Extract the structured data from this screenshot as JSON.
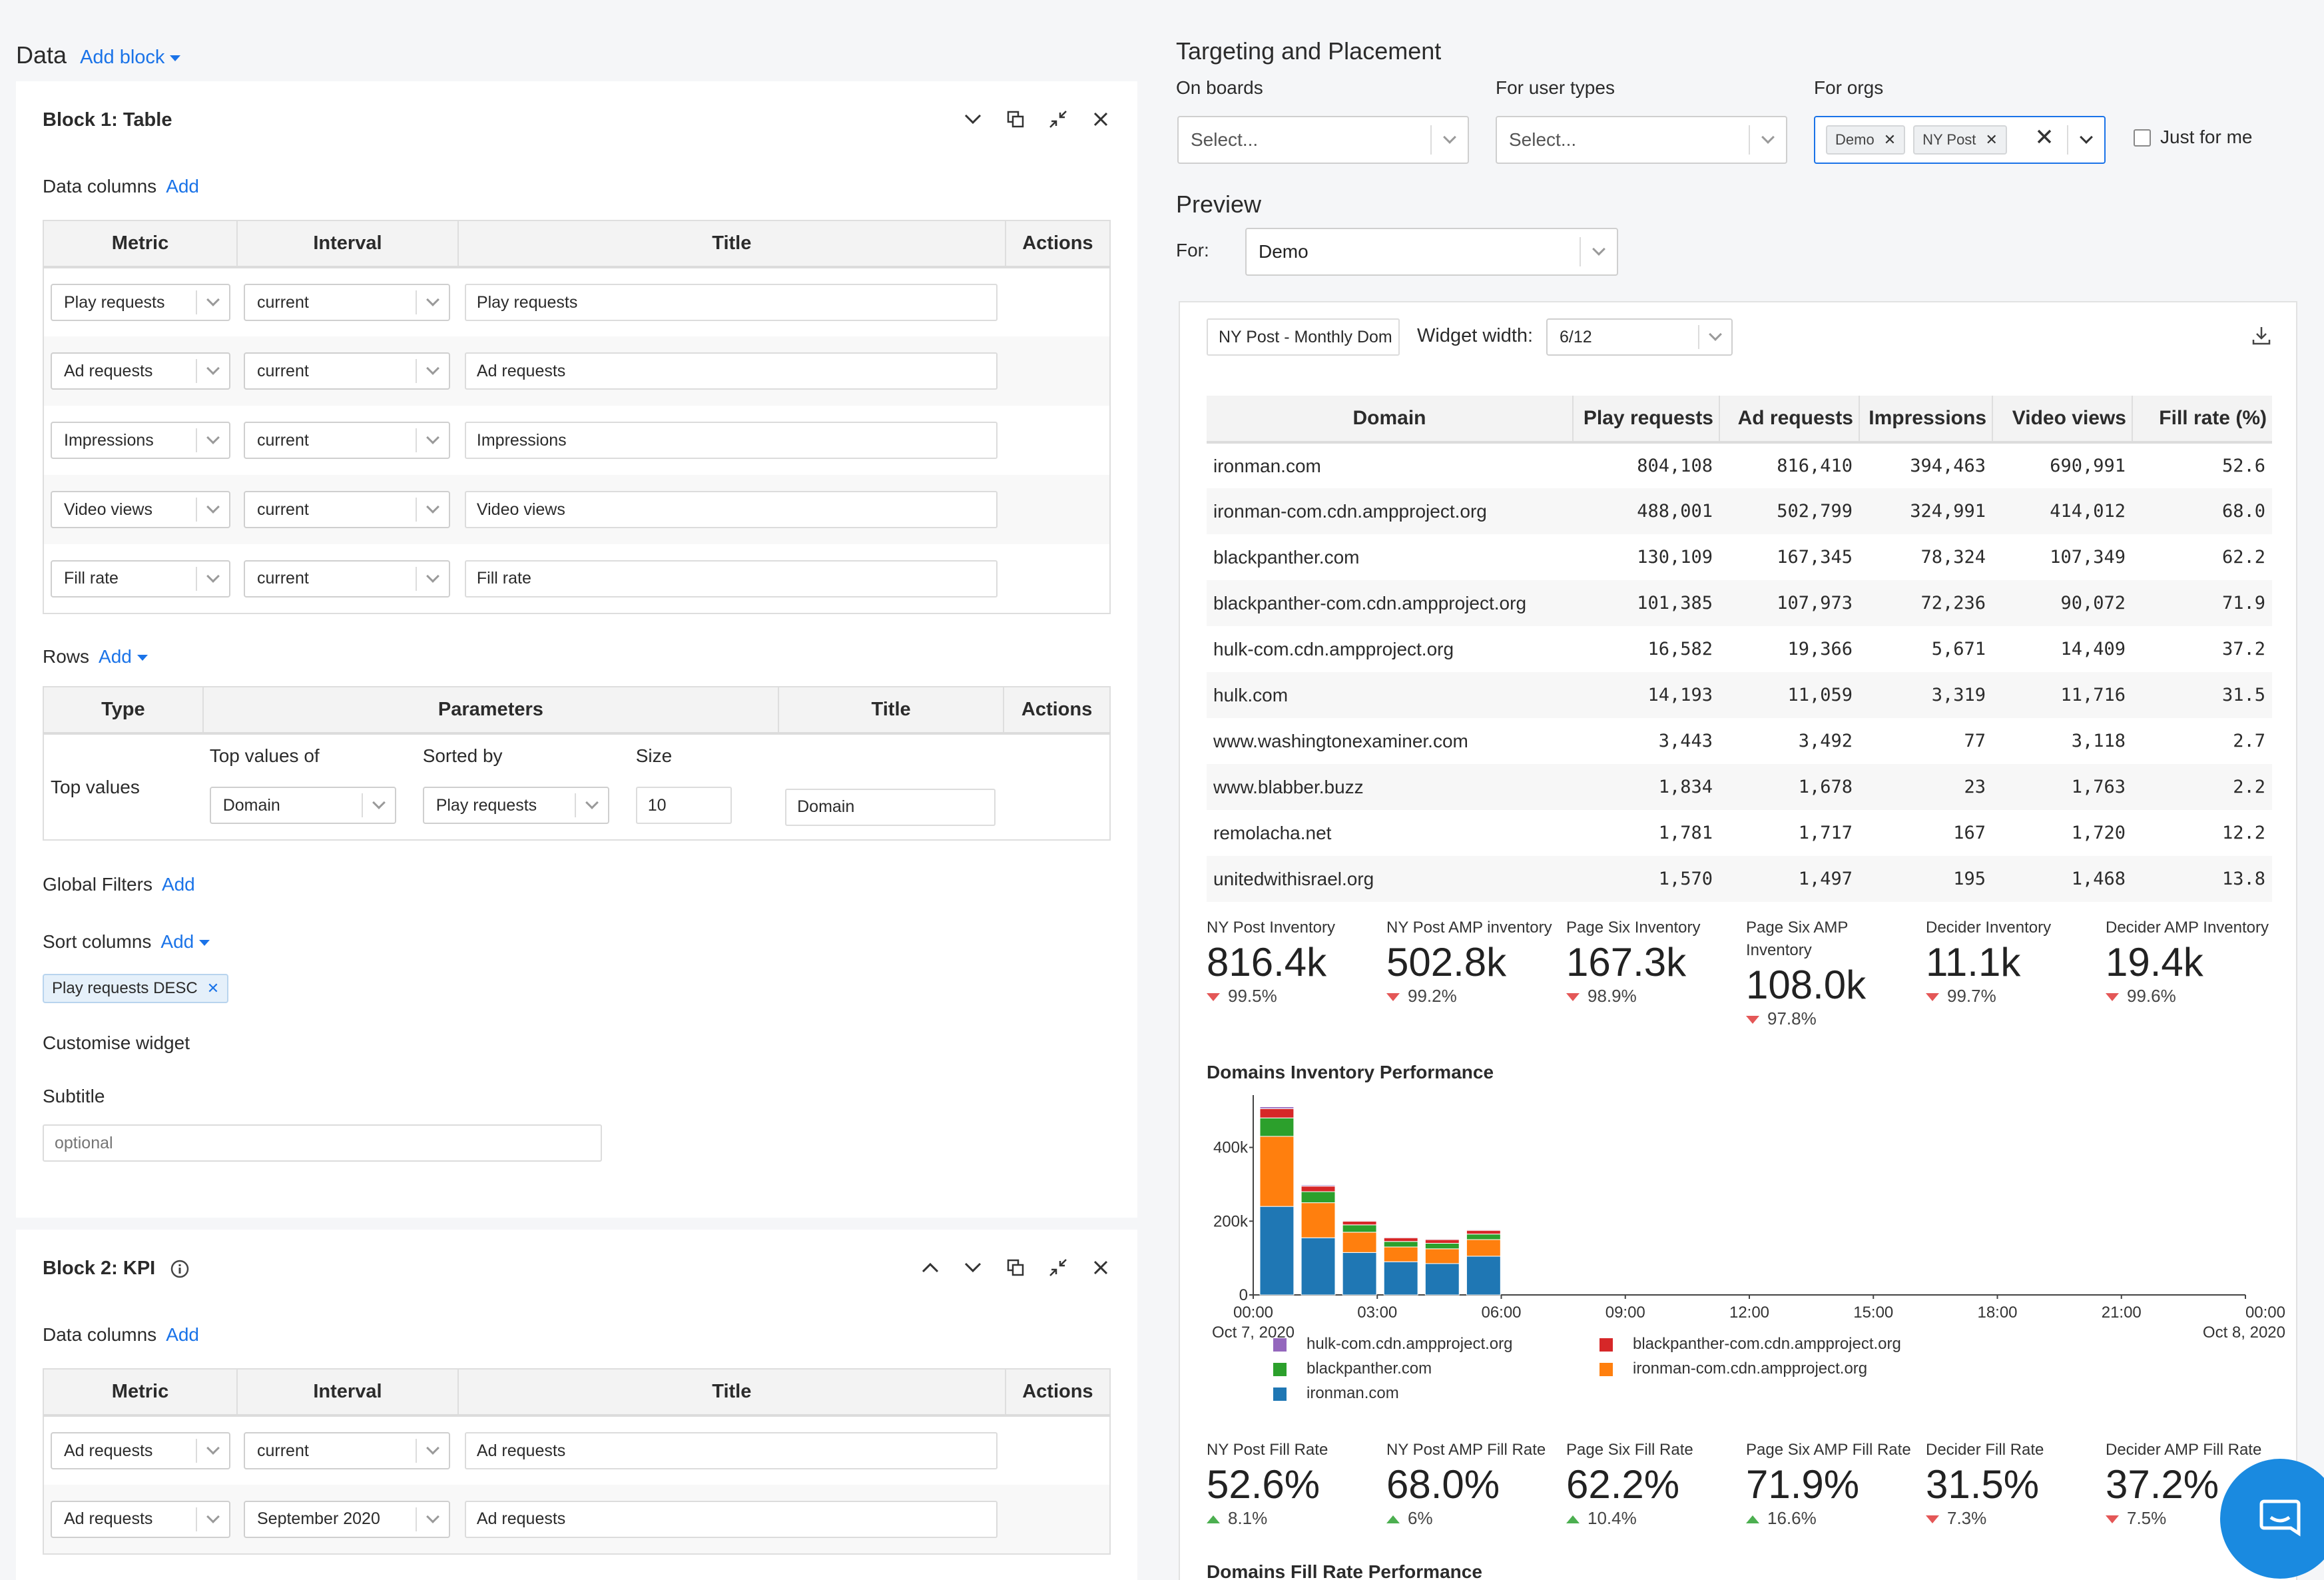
{
  "data_section": {
    "title": "Data",
    "add_block": "Add block"
  },
  "block1": {
    "title": "Block 1: Table",
    "data_columns_label": "Data columns",
    "add": "Add",
    "headers": [
      "Metric",
      "Interval",
      "Title",
      "Actions"
    ],
    "rows": [
      {
        "metric": "Play requests",
        "interval": "current",
        "title": "Play requests"
      },
      {
        "metric": "Ad requests",
        "interval": "current",
        "title": "Ad requests"
      },
      {
        "metric": "Impressions",
        "interval": "current",
        "title": "Impressions"
      },
      {
        "metric": "Video views",
        "interval": "current",
        "title": "Video views"
      },
      {
        "metric": "Fill rate",
        "interval": "current",
        "title": "Fill rate"
      }
    ],
    "rows_label": "Rows",
    "rows_headers": [
      "Type",
      "Parameters",
      "Title",
      "Actions"
    ],
    "row_item": {
      "type": "Top values",
      "top_values_of_label": "Top values of",
      "sorted_by_label": "Sorted by",
      "size_label": "Size",
      "top_values_of": "Domain",
      "sorted_by": "Play requests",
      "size": "10",
      "title": "Domain"
    },
    "global_filters": "Global Filters",
    "sort_columns": "Sort columns",
    "sort_tag": "Play requests DESC",
    "customise": "Customise widget",
    "subtitle_label": "Subtitle",
    "subtitle_placeholder": "optional"
  },
  "block2": {
    "title": "Block 2: KPI",
    "data_columns_label": "Data columns",
    "add": "Add",
    "headers": [
      "Metric",
      "Interval",
      "Title",
      "Actions"
    ],
    "rows": [
      {
        "metric": "Ad requests",
        "interval": "current",
        "title": "Ad requests"
      },
      {
        "metric": "Ad requests",
        "interval": "September 2020",
        "title": "Ad requests"
      }
    ]
  },
  "targeting": {
    "title": "Targeting and Placement",
    "on_boards": "On boards",
    "on_boards_placeholder": "Select...",
    "user_types": "For user types",
    "user_types_placeholder": "Select...",
    "orgs": "For orgs",
    "org_tags": [
      "Demo",
      "NY Post"
    ],
    "just_for_me": "Just for me"
  },
  "preview": {
    "title": "Preview",
    "for_label": "For:",
    "for_value": "Demo",
    "widget_name": "NY Post - Monthly Dom",
    "widget_width_label": "Widget width:",
    "widget_width": "6/12"
  },
  "domain_table": {
    "headers": [
      "Domain",
      "Play requests",
      "Ad requests",
      "Impressions",
      "Video views",
      "Fill rate (%)"
    ],
    "rows": [
      [
        "ironman.com",
        "804,108",
        "816,410",
        "394,463",
        "690,991",
        "52.6"
      ],
      [
        "ironman-com.cdn.ampproject.org",
        "488,001",
        "502,799",
        "324,991",
        "414,012",
        "68.0"
      ],
      [
        "blackpanther.com",
        "130,109",
        "167,345",
        "78,324",
        "107,349",
        "62.2"
      ],
      [
        "blackpanther-com.cdn.ampproject.org",
        "101,385",
        "107,973",
        "72,236",
        "90,072",
        "71.9"
      ],
      [
        "hulk-com.cdn.ampproject.org",
        "16,582",
        "19,366",
        "5,671",
        "14,409",
        "37.2"
      ],
      [
        "hulk.com",
        "14,193",
        "11,059",
        "3,319",
        "11,716",
        "31.5"
      ],
      [
        "www.washingtonexaminer.com",
        "3,443",
        "3,492",
        "77",
        "3,118",
        "2.7"
      ],
      [
        "www.blabber.buzz",
        "1,834",
        "1,678",
        "23",
        "1,763",
        "2.2"
      ],
      [
        "remolacha.net",
        "1,781",
        "1,717",
        "167",
        "1,720",
        "12.2"
      ],
      [
        "unitedwithisrael.org",
        "1,570",
        "1,497",
        "195",
        "1,468",
        "13.8"
      ]
    ]
  },
  "inventory_kpis": [
    {
      "label": "NY Post Inventory",
      "value": "816.4k",
      "delta": "99.5%",
      "dir": "down"
    },
    {
      "label": "NY Post AMP inventory",
      "value": "502.8k",
      "delta": "99.2%",
      "dir": "down"
    },
    {
      "label": "Page Six Inventory",
      "value": "167.3k",
      "delta": "98.9%",
      "dir": "down"
    },
    {
      "label": "Page Six AMP Inventory",
      "value": "108.0k",
      "delta": "97.8%",
      "dir": "down"
    },
    {
      "label": "Decider Inventory",
      "value": "11.1k",
      "delta": "99.7%",
      "dir": "down"
    },
    {
      "label": "Decider AMP Inventory",
      "value": "19.4k",
      "delta": "99.6%",
      "dir": "down"
    }
  ],
  "fill_kpis": [
    {
      "label": "NY Post Fill Rate",
      "value": "52.6%",
      "delta": "8.1%",
      "dir": "up"
    },
    {
      "label": "NY Post AMP Fill Rate",
      "value": "68.0%",
      "delta": "6%",
      "dir": "up"
    },
    {
      "label": "Page Six Fill Rate",
      "value": "62.2%",
      "delta": "10.4%",
      "dir": "up"
    },
    {
      "label": "Page Six AMP Fill Rate",
      "value": "71.9%",
      "delta": "16.6%",
      "dir": "up"
    },
    {
      "label": "Decider Fill Rate",
      "value": "31.5%",
      "delta": "7.3%",
      "dir": "down"
    },
    {
      "label": "Decider AMP Fill Rate",
      "value": "37.2%",
      "delta": "7.5%",
      "dir": "down"
    }
  ],
  "chart_data": {
    "type": "bar",
    "title": "Domains Inventory Performance",
    "stacked": true,
    "ylim": [
      0,
      560000
    ],
    "y_ticks": [
      "0",
      "200k",
      "400k"
    ],
    "x_ticks": [
      "00:00",
      "03:00",
      "06:00",
      "09:00",
      "12:00",
      "15:00",
      "18:00",
      "21:00",
      "00:00"
    ],
    "x_tick_dates": [
      "Oct 7, 2020",
      "",
      "",
      "",
      "",
      "",
      "",
      "",
      "Oct 8, 2020"
    ],
    "colors": {
      "ironman.com": "#1f77b4",
      "ironman-com.cdn.ampproject.org": "#ff7f0e",
      "blackpanther.com": "#2ca02c",
      "blackpanther-com.cdn.ampproject.org": "#d62728",
      "hulk-com.cdn.ampproject.org": "#9467bd"
    },
    "x": [
      "00:00",
      "01:00",
      "02:00",
      "03:00",
      "04:00",
      "05:00"
    ],
    "series": [
      {
        "name": "ironman.com",
        "values": [
          240000,
          155000,
          115000,
          90000,
          85000,
          105000
        ]
      },
      {
        "name": "ironman-com.cdn.ampproject.org",
        "values": [
          190000,
          95000,
          55000,
          40000,
          40000,
          45000
        ]
      },
      {
        "name": "blackpanther.com",
        "values": [
          50000,
          30000,
          20000,
          15000,
          15000,
          15000
        ]
      },
      {
        "name": "blackpanther-com.cdn.ampproject.org",
        "values": [
          25000,
          15000,
          10000,
          10000,
          10000,
          10000
        ]
      },
      {
        "name": "hulk-com.cdn.ampproject.org",
        "values": [
          5000,
          3000,
          2000,
          2000,
          2000,
          2000
        ]
      }
    ]
  },
  "fill_chart_title": "Domains Fill Rate Performance"
}
